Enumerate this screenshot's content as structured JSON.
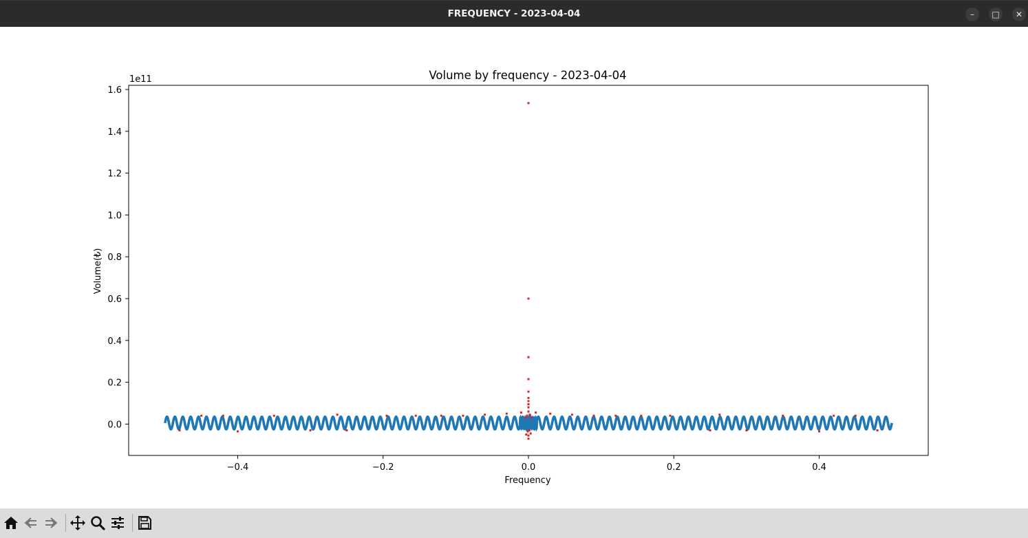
{
  "window": {
    "title": "FREQUENCY - 2023-04-04",
    "controls": {
      "minimize": "–",
      "maximize": "□",
      "close": "✕"
    }
  },
  "toolbar": {
    "buttons": [
      "home-icon",
      "back-icon",
      "forward-icon",
      "pan-icon",
      "zoom-icon",
      "configure-icon",
      "save-icon"
    ]
  },
  "chart_data": {
    "type": "scatter",
    "title": "Volume by frequency - 2023-04-04",
    "xlabel": "Frequency",
    "ylabel": "Volume(₺)",
    "offset_label": "1e11",
    "xlim": [
      -0.55,
      0.55
    ],
    "ylim": [
      -0.15,
      1.62
    ],
    "y_multiplier": 100000000000,
    "xticks": [
      -0.4,
      -0.2,
      0.0,
      0.2,
      0.4
    ],
    "xtick_labels": [
      "−0.4",
      "−0.2",
      "0.0",
      "0.2",
      "0.4"
    ],
    "yticks": [
      0.0,
      0.2,
      0.4,
      0.6,
      0.8,
      1.0,
      1.2,
      1.4,
      1.6
    ],
    "ytick_labels": [
      "0.0",
      "0.2",
      "0.4",
      "0.6",
      "0.8",
      "1.0",
      "1.2",
      "1.4",
      "1.6"
    ],
    "grid": false,
    "series": [
      {
        "color": "#d62728",
        "x": [
          0.0,
          0.0,
          0.0,
          0.0,
          0.0,
          0.0,
          0.0,
          0.0,
          0.0,
          0.0,
          0.002,
          -0.002,
          0.004,
          -0.004,
          0.001,
          -0.001,
          0.003,
          -0.003,
          0.0,
          0.0,
          -0.263,
          0.263,
          -0.45,
          0.45,
          -0.35,
          0.35,
          -0.42,
          0.42,
          -0.195,
          0.195,
          -0.155,
          0.155,
          -0.12,
          0.12,
          -0.09,
          0.09,
          -0.06,
          0.06,
          -0.03,
          0.03,
          -0.01,
          0.01,
          -0.25,
          0.25,
          -0.3,
          0.3,
          -0.48,
          0.48,
          -0.4,
          0.4
        ],
        "y": [
          1.535,
          0.6,
          0.32,
          0.215,
          0.155,
          0.125,
          0.11,
          0.095,
          0.08,
          0.06,
          0.045,
          0.04,
          0.03,
          0.03,
          -0.03,
          -0.035,
          -0.045,
          -0.05,
          -0.055,
          -0.07,
          0.045,
          0.045,
          0.04,
          0.04,
          0.04,
          0.04,
          0.04,
          0.04,
          0.04,
          0.04,
          0.04,
          0.04,
          0.04,
          0.04,
          0.04,
          0.04,
          0.045,
          0.045,
          0.05,
          0.05,
          0.055,
          0.055,
          -0.03,
          -0.03,
          -0.03,
          -0.03,
          -0.03,
          -0.03,
          -0.035,
          -0.035
        ]
      },
      {
        "color": "#1f77b4",
        "x_range": [
          -0.5,
          0.5
        ],
        "center": 0.005,
        "amplitude": 0.03,
        "cycles": 92
      }
    ]
  }
}
